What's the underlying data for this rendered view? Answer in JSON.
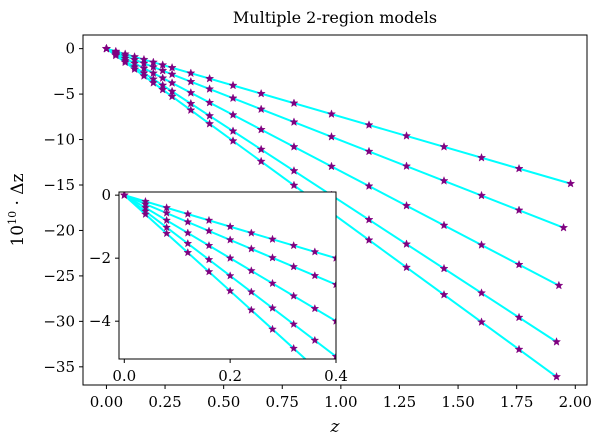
{
  "chart_data": [
    {
      "type": "line",
      "title": "Multiple 2-region models",
      "xlabel": "z",
      "ylabel": "10^10 · Δz",
      "xlim": [
        -0.1,
        2.05
      ],
      "ylim": [
        -37,
        1.5
      ],
      "xticks": [
        "0.00",
        "0.25",
        "0.50",
        "0.75",
        "1.00",
        "1.25",
        "1.50",
        "1.75",
        "2.00"
      ],
      "yticks": [
        "0",
        "−5",
        "−10",
        "−15",
        "−20",
        "−25",
        "−30",
        "−35"
      ],
      "grid": false,
      "line_color": "#00ffff",
      "marker_color": "#800080",
      "series": [
        {
          "slope": -7.5,
          "x": [
            0,
            0.04,
            0.08,
            0.12,
            0.16,
            0.2,
            0.24,
            0.28,
            0.36,
            0.44,
            0.54,
            0.66,
            0.8,
            0.96,
            1.12,
            1.28,
            1.44,
            1.6,
            1.76,
            1.98
          ]
        },
        {
          "slope": -10.1,
          "x": [
            0,
            0.04,
            0.08,
            0.12,
            0.16,
            0.2,
            0.24,
            0.28,
            0.36,
            0.44,
            0.54,
            0.66,
            0.8,
            0.96,
            1.12,
            1.28,
            1.44,
            1.6,
            1.76,
            1.95
          ]
        },
        {
          "slope": -13.5,
          "x": [
            0,
            0.04,
            0.08,
            0.12,
            0.16,
            0.2,
            0.24,
            0.28,
            0.36,
            0.44,
            0.54,
            0.66,
            0.8,
            0.96,
            1.12,
            1.28,
            1.44,
            1.6,
            1.76,
            1.93
          ]
        },
        {
          "slope": -16.8,
          "x": [
            0,
            0.04,
            0.08,
            0.12,
            0.16,
            0.2,
            0.24,
            0.28,
            0.36,
            0.44,
            0.54,
            0.66,
            0.8,
            0.96,
            1.12,
            1.28,
            1.44,
            1.6,
            1.76,
            1.92
          ]
        },
        {
          "slope": -18.8,
          "x": [
            0,
            0.04,
            0.08,
            0.12,
            0.16,
            0.2,
            0.24,
            0.28,
            0.36,
            0.44,
            0.54,
            0.66,
            0.8,
            0.96,
            1.12,
            1.28,
            1.44,
            1.6,
            1.76,
            1.92
          ]
        }
      ]
    },
    {
      "type": "line",
      "xlim": [
        -0.01,
        0.4
      ],
      "ylim": [
        -5.2,
        0.1
      ],
      "xticks": [
        "0.0",
        "0.2",
        "0.4"
      ],
      "yticks": [
        "0",
        "−2",
        "−4"
      ],
      "series": [
        {
          "slope": -5.0,
          "x": [
            0,
            0.04,
            0.08,
            0.12,
            0.16,
            0.2,
            0.24,
            0.28,
            0.32,
            0.36,
            0.4
          ]
        },
        {
          "slope": -7.1,
          "x": [
            0,
            0.04,
            0.08,
            0.12,
            0.16,
            0.2,
            0.24,
            0.28,
            0.32,
            0.36,
            0.4
          ]
        },
        {
          "slope": -10.0,
          "x": [
            0,
            0.04,
            0.08,
            0.12,
            0.16,
            0.2,
            0.24,
            0.28,
            0.32,
            0.36,
            0.4
          ]
        },
        {
          "slope": -12.8,
          "x": [
            0,
            0.04,
            0.08,
            0.12,
            0.16,
            0.2,
            0.24,
            0.28,
            0.32,
            0.36,
            0.4
          ]
        },
        {
          "slope": -15.2,
          "x": [
            0,
            0.04,
            0.08,
            0.12,
            0.16,
            0.2,
            0.24,
            0.28,
            0.32,
            0.36,
            0.4
          ]
        }
      ]
    }
  ]
}
